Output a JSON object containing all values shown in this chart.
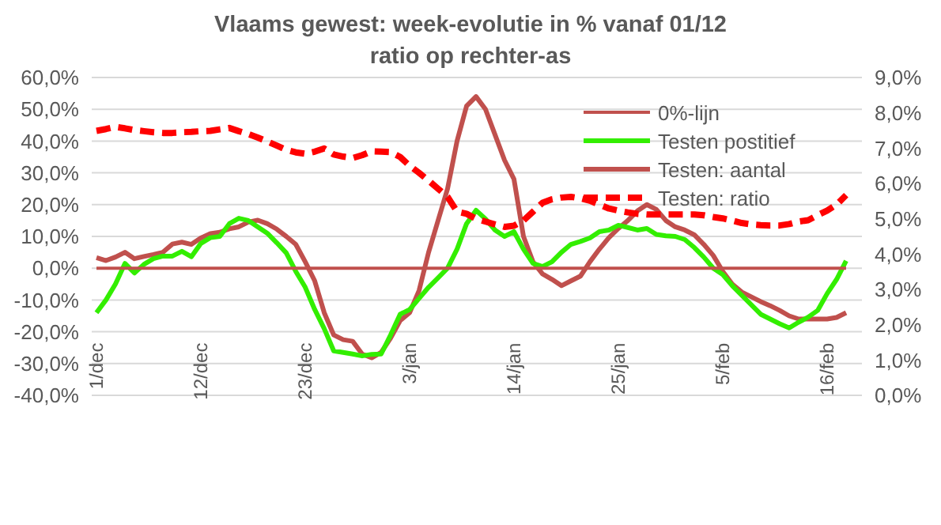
{
  "chart_data": {
    "type": "line",
    "title": "Vlaams gewest:  week-evolutie in %  vanaf 01/12",
    "subtitle": "ratio op rechter-as",
    "categories": [
      "1/dec",
      null,
      null,
      null,
      null,
      null,
      null,
      null,
      null,
      null,
      null,
      "12/dec",
      null,
      null,
      null,
      null,
      null,
      null,
      null,
      null,
      null,
      null,
      "23/dec",
      null,
      null,
      null,
      null,
      null,
      null,
      null,
      null,
      null,
      null,
      "3/jan",
      null,
      null,
      null,
      null,
      null,
      null,
      null,
      null,
      null,
      null,
      "14/jan",
      null,
      null,
      null,
      null,
      null,
      null,
      null,
      null,
      null,
      null,
      "25/jan",
      null,
      null,
      null,
      null,
      null,
      null,
      null,
      null,
      null,
      null,
      "5/feb",
      null,
      null,
      null,
      null,
      null,
      null,
      null,
      null,
      null,
      null,
      "16/feb",
      null,
      null
    ],
    "series": [
      {
        "name": "Testen: aantal",
        "color": "#c0504d",
        "values": [
          3.3,
          2.4,
          3.5,
          5,
          3,
          3.7,
          4.3,
          5,
          7.6,
          8.2,
          7.5,
          9.5,
          10.9,
          11.3,
          12.4,
          13,
          14.5,
          15.1,
          14,
          12.3,
          10,
          7.5,
          2,
          -4,
          -14,
          -21,
          -22.5,
          -23,
          -27,
          -28.2,
          -26.5,
          -22,
          -16.5,
          -14,
          -7,
          5,
          15,
          25,
          40,
          51,
          54,
          50,
          42,
          34,
          28,
          10,
          2,
          -1.8,
          -3.5,
          -5.5,
          -4,
          -2.5,
          2,
          6,
          9.6,
          12.5,
          15,
          18,
          20,
          18.5,
          15,
          13,
          12,
          10.5,
          7.5,
          4,
          -1,
          -5,
          -7.5,
          -9,
          -10.5,
          -11.8,
          -13.3,
          -15,
          -16,
          -16,
          -16,
          -16,
          -15.5,
          -14
        ]
      },
      {
        "name": "Testen postitief",
        "color": "#33ee00",
        "values": [
          -14,
          -10,
          -5,
          1.5,
          -1.5,
          1.2,
          3,
          3.8,
          3.8,
          5.3,
          3.6,
          7.8,
          9.6,
          10,
          14,
          15.7,
          15,
          13,
          11,
          8,
          4.8,
          -1,
          -6,
          -13,
          -19,
          -26,
          -26.5,
          -27,
          -27.6,
          -27.1,
          -27,
          -21,
          -14.5,
          -13,
          -9.5,
          -6,
          -3,
          0,
          6,
          14,
          18.2,
          15.5,
          12,
          10,
          11.5,
          6,
          1.5,
          0.5,
          2,
          5,
          7.5,
          8.4,
          9.5,
          11.5,
          12,
          13.5,
          12.8,
          12,
          12.5,
          10.6,
          10.2,
          10,
          9,
          6.5,
          3.5,
          0,
          -2,
          -5.5,
          -8.5,
          -11.5,
          -14.5,
          -16,
          -17.5,
          -18.8,
          -17,
          -15.4,
          -13.3,
          -8,
          -3.5,
          2.3
        ]
      },
      {
        "name": "0%-lijn",
        "color": "#c0504d",
        "values": [
          0,
          0,
          0,
          0,
          0,
          0,
          0,
          0,
          0,
          0,
          0,
          0,
          0,
          0,
          0,
          0,
          0,
          0,
          0,
          0,
          0,
          0,
          0,
          0,
          0,
          0,
          0,
          0,
          0,
          0,
          0,
          0,
          0,
          0,
          0,
          0,
          0,
          0,
          0,
          0,
          0,
          0,
          0,
          0,
          0,
          0,
          0,
          0,
          0,
          0,
          0,
          0,
          0,
          0,
          0,
          0,
          0,
          0,
          0,
          0,
          0,
          0,
          0,
          0,
          0,
          0,
          0,
          0,
          0,
          0,
          0,
          0,
          0,
          0,
          0,
          0,
          0,
          0,
          0,
          0
        ]
      },
      {
        "name": "Testen: ratio",
        "color": "#ff0000",
        "axis": "y2",
        "line_style": "dashed",
        "values": [
          7.49,
          7.54,
          7.6,
          7.56,
          7.51,
          7.48,
          7.45,
          7.43,
          7.43,
          7.45,
          7.46,
          7.48,
          7.49,
          7.53,
          7.57,
          7.48,
          7.4,
          7.3,
          7.19,
          7.07,
          6.95,
          6.88,
          6.84,
          6.9,
          6.99,
          6.82,
          6.76,
          6.72,
          6.8,
          6.91,
          6.9,
          6.89,
          6.75,
          6.5,
          6.3,
          6.08,
          5.85,
          5.62,
          5.2,
          5.14,
          5.0,
          4.92,
          4.84,
          4.77,
          4.8,
          4.95,
          5.2,
          5.45,
          5.55,
          5.6,
          5.62,
          5.58,
          5.51,
          5.4,
          5.29,
          5.23,
          5.18,
          5.14,
          5.12,
          5.12,
          5.12,
          5.12,
          5.12,
          5.12,
          5.1,
          5.05,
          5.01,
          4.95,
          4.88,
          4.84,
          4.82,
          4.81,
          4.81,
          4.85,
          4.92,
          4.96,
          5.1,
          5.23,
          5.4,
          5.67
        ]
      }
    ],
    "ylim": [
      -40,
      60
    ],
    "yticks": [
      {
        "value": -40,
        "label": "-40,0%"
      },
      {
        "value": -30,
        "label": "-30,0%"
      },
      {
        "value": -20,
        "label": "-20,0%"
      },
      {
        "value": -10,
        "label": "-10,0%"
      },
      {
        "value": 0,
        "label": "0,0%"
      },
      {
        "value": 10,
        "label": "10,0%"
      },
      {
        "value": 20,
        "label": "20,0%"
      },
      {
        "value": 30,
        "label": "30,0%"
      },
      {
        "value": 40,
        "label": "40,0%"
      },
      {
        "value": 50,
        "label": "50,0%"
      },
      {
        "value": 60,
        "label": "60,0%"
      }
    ],
    "y2lim": [
      0,
      9
    ],
    "y2ticks": [
      {
        "value": 0,
        "label": "0,0%"
      },
      {
        "value": 1,
        "label": "1,0%"
      },
      {
        "value": 2,
        "label": "2,0%"
      },
      {
        "value": 3,
        "label": "3,0%"
      },
      {
        "value": 4,
        "label": "4,0%"
      },
      {
        "value": 5,
        "label": "5,0%"
      },
      {
        "value": 6,
        "label": "6,0%"
      },
      {
        "value": 7,
        "label": "7,0%"
      },
      {
        "value": 8,
        "label": "8,0%"
      },
      {
        "value": 9,
        "label": "9,0%"
      }
    ],
    "grid": "y",
    "legend": "top right",
    "marker": "none"
  }
}
